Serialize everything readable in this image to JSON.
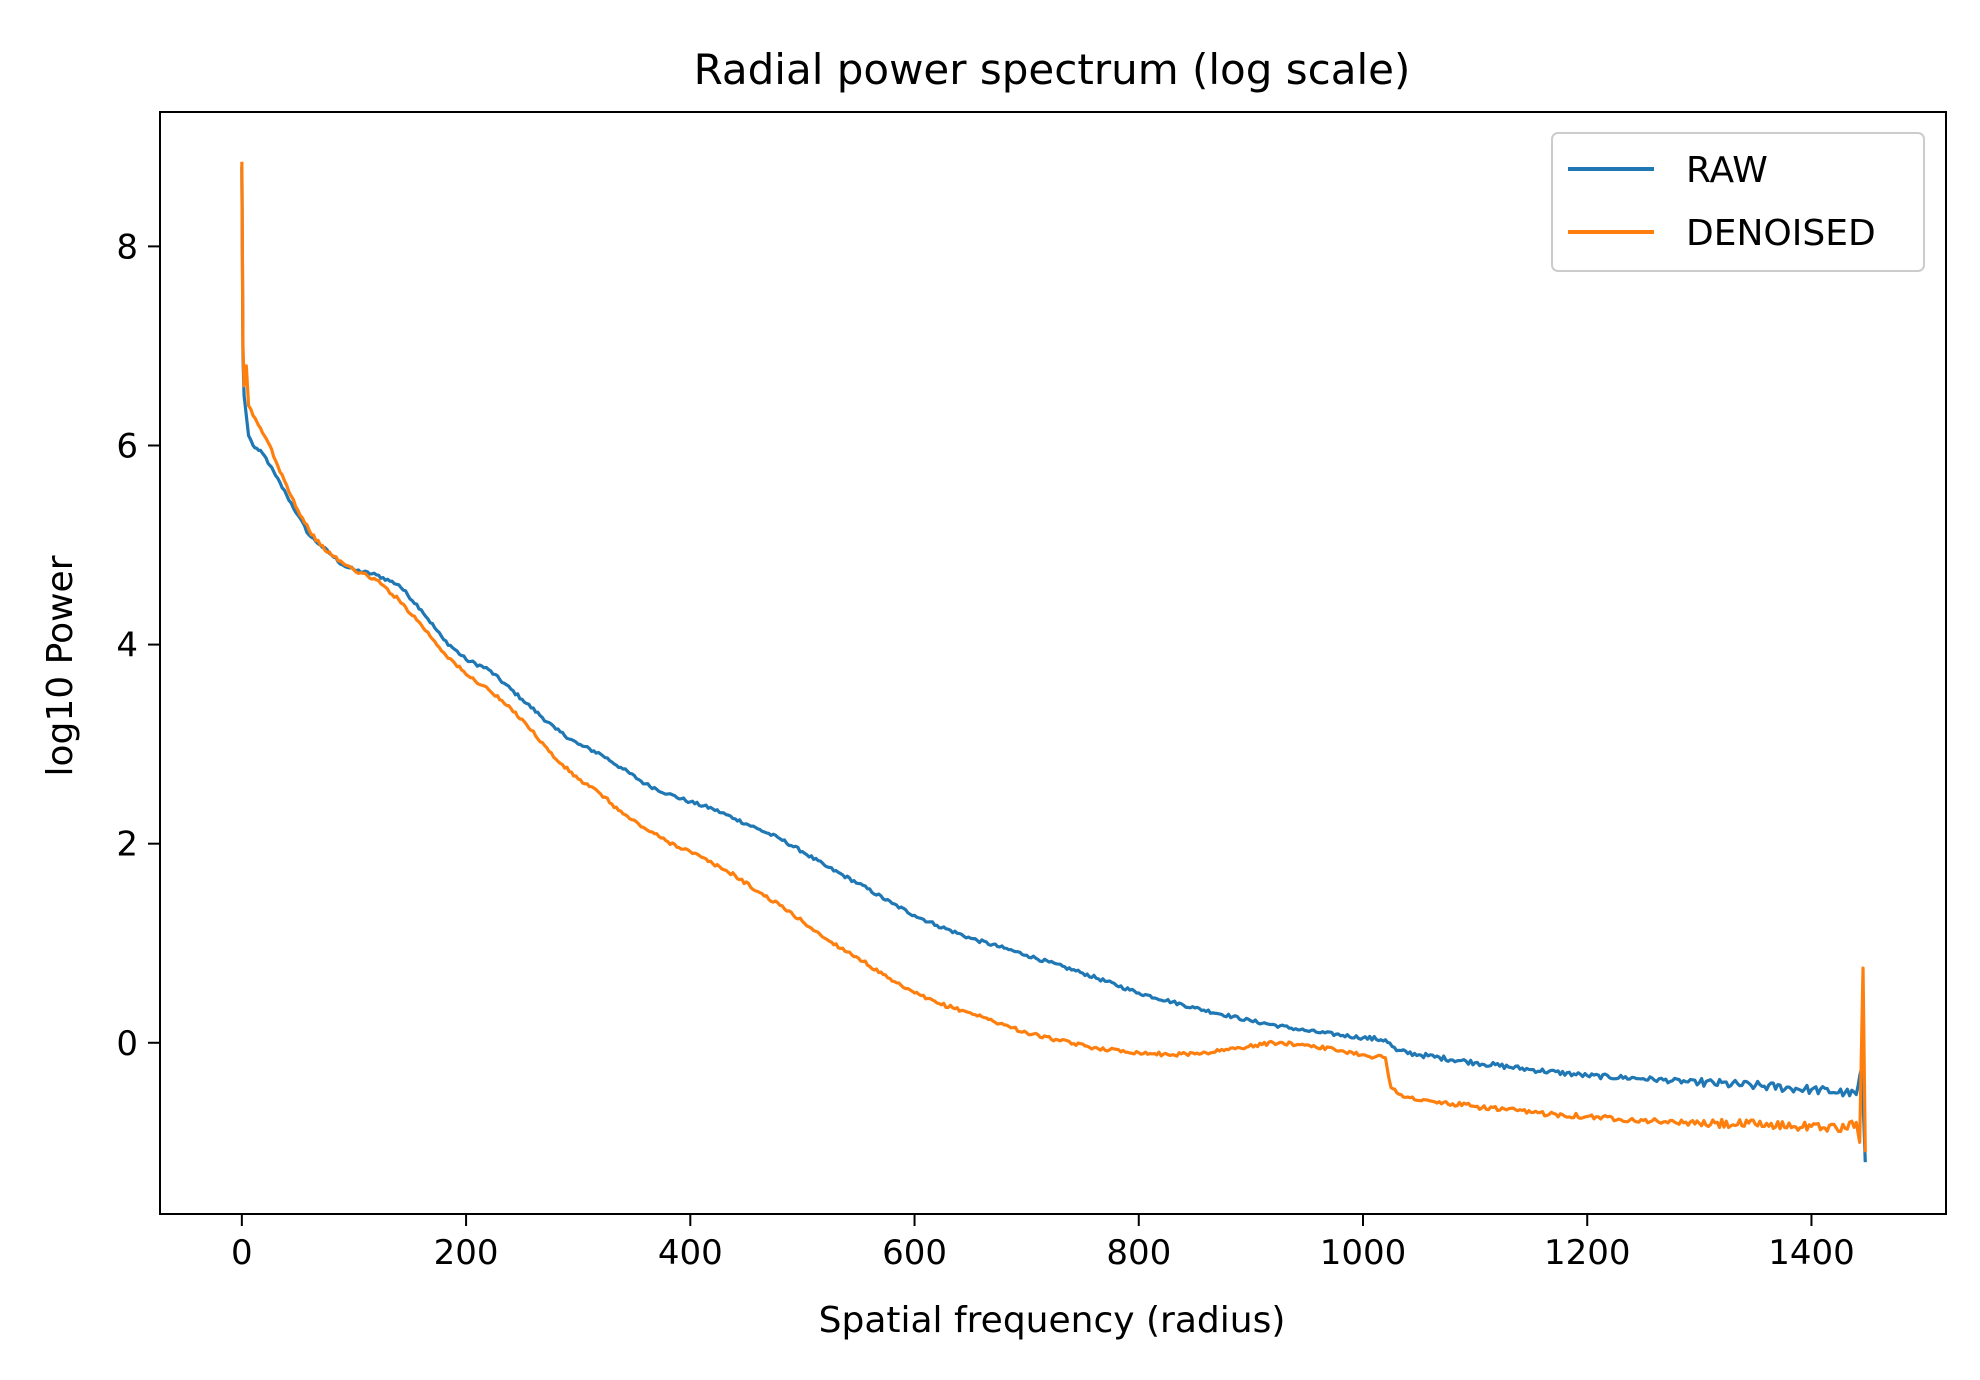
{
  "chart_data": {
    "type": "line",
    "title": "Radial power spectrum (log scale)",
    "xlabel": "Spatial frequency (radius)",
    "ylabel": "log10 Power",
    "xlim": [
      -73,
      1520
    ],
    "ylim": [
      -1.72,
      9.35
    ],
    "xticks": [
      0,
      200,
      400,
      600,
      800,
      1000,
      1200,
      1400
    ],
    "yticks": [
      0,
      2,
      4,
      6,
      8
    ],
    "legend_position": "top-right",
    "grid": false,
    "colors": {
      "RAW": "#1f77b4",
      "DENOISED": "#ff7f0e"
    },
    "series": [
      {
        "name": "RAW",
        "color": "#1f77b4",
        "points": [
          [
            0,
            8.8
          ],
          [
            1,
            6.9
          ],
          [
            2,
            6.5
          ],
          [
            4,
            6.3
          ],
          [
            6,
            6.1
          ],
          [
            10,
            6.0
          ],
          [
            15,
            5.95
          ],
          [
            20,
            5.9
          ],
          [
            25,
            5.8
          ],
          [
            30,
            5.7
          ],
          [
            40,
            5.5
          ],
          [
            50,
            5.3
          ],
          [
            60,
            5.1
          ],
          [
            70,
            5.0
          ],
          [
            80,
            4.9
          ],
          [
            90,
            4.8
          ],
          [
            100,
            4.75
          ],
          [
            120,
            4.7
          ],
          [
            140,
            4.6
          ],
          [
            160,
            4.35
          ],
          [
            180,
            4.05
          ],
          [
            200,
            3.85
          ],
          [
            220,
            3.75
          ],
          [
            250,
            3.45
          ],
          [
            280,
            3.15
          ],
          [
            300,
            3.0
          ],
          [
            320,
            2.9
          ],
          [
            340,
            2.75
          ],
          [
            360,
            2.6
          ],
          [
            380,
            2.5
          ],
          [
            400,
            2.42
          ],
          [
            420,
            2.35
          ],
          [
            440,
            2.25
          ],
          [
            460,
            2.15
          ],
          [
            480,
            2.05
          ],
          [
            500,
            1.92
          ],
          [
            520,
            1.78
          ],
          [
            550,
            1.6
          ],
          [
            580,
            1.4
          ],
          [
            600,
            1.28
          ],
          [
            620,
            1.18
          ],
          [
            650,
            1.05
          ],
          [
            680,
            0.95
          ],
          [
            700,
            0.88
          ],
          [
            750,
            0.7
          ],
          [
            800,
            0.5
          ],
          [
            850,
            0.35
          ],
          [
            900,
            0.22
          ],
          [
            950,
            0.12
          ],
          [
            1000,
            0.05
          ],
          [
            1020,
            0.03
          ],
          [
            1030,
            -0.08
          ],
          [
            1050,
            -0.12
          ],
          [
            1100,
            -0.2
          ],
          [
            1150,
            -0.27
          ],
          [
            1200,
            -0.33
          ],
          [
            1250,
            -0.36
          ],
          [
            1300,
            -0.4
          ],
          [
            1350,
            -0.43
          ],
          [
            1400,
            -0.47
          ],
          [
            1430,
            -0.5
          ],
          [
            1440,
            -0.52
          ],
          [
            1445,
            -0.25
          ],
          [
            1448,
            -1.2
          ]
        ]
      },
      {
        "name": "DENOISED",
        "color": "#ff7f0e",
        "points": [
          [
            0,
            8.85
          ],
          [
            1,
            7.0
          ],
          [
            2,
            6.6
          ],
          [
            4,
            6.8
          ],
          [
            6,
            6.4
          ],
          [
            10,
            6.3
          ],
          [
            15,
            6.2
          ],
          [
            20,
            6.1
          ],
          [
            25,
            6.0
          ],
          [
            30,
            5.85
          ],
          [
            40,
            5.6
          ],
          [
            50,
            5.35
          ],
          [
            60,
            5.15
          ],
          [
            70,
            5.0
          ],
          [
            80,
            4.9
          ],
          [
            90,
            4.82
          ],
          [
            100,
            4.75
          ],
          [
            120,
            4.65
          ],
          [
            140,
            4.45
          ],
          [
            160,
            4.2
          ],
          [
            180,
            3.92
          ],
          [
            200,
            3.7
          ],
          [
            220,
            3.55
          ],
          [
            250,
            3.25
          ],
          [
            280,
            2.85
          ],
          [
            300,
            2.65
          ],
          [
            320,
            2.5
          ],
          [
            340,
            2.3
          ],
          [
            360,
            2.15
          ],
          [
            380,
            2.02
          ],
          [
            400,
            1.92
          ],
          [
            420,
            1.8
          ],
          [
            440,
            1.68
          ],
          [
            460,
            1.52
          ],
          [
            480,
            1.38
          ],
          [
            500,
            1.22
          ],
          [
            520,
            1.05
          ],
          [
            550,
            0.85
          ],
          [
            580,
            0.62
          ],
          [
            600,
            0.5
          ],
          [
            620,
            0.4
          ],
          [
            650,
            0.3
          ],
          [
            680,
            0.18
          ],
          [
            700,
            0.1
          ],
          [
            730,
            0.02
          ],
          [
            760,
            -0.05
          ],
          [
            800,
            -0.1
          ],
          [
            830,
            -0.12
          ],
          [
            860,
            -0.1
          ],
          [
            890,
            -0.05
          ],
          [
            920,
            0.0
          ],
          [
            950,
            -0.02
          ],
          [
            980,
            -0.08
          ],
          [
            1000,
            -0.12
          ],
          [
            1020,
            -0.15
          ],
          [
            1023,
            -0.35
          ],
          [
            1025,
            -0.45
          ],
          [
            1030,
            -0.5
          ],
          [
            1050,
            -0.58
          ],
          [
            1100,
            -0.64
          ],
          [
            1150,
            -0.7
          ],
          [
            1200,
            -0.74
          ],
          [
            1250,
            -0.78
          ],
          [
            1300,
            -0.81
          ],
          [
            1350,
            -0.82
          ],
          [
            1400,
            -0.84
          ],
          [
            1430,
            -0.86
          ],
          [
            1440,
            -0.8
          ],
          [
            1443,
            -1.0
          ],
          [
            1446,
            0.75
          ],
          [
            1448,
            -1.1
          ]
        ]
      }
    ]
  }
}
